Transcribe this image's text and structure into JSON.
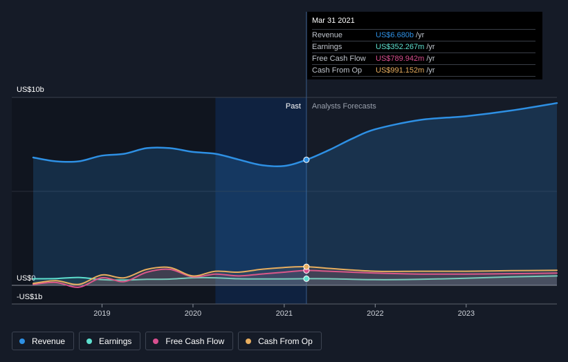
{
  "chart_data": {
    "type": "line",
    "x_axis": {
      "ticks": [
        "2019",
        "2020",
        "2021",
        "2022",
        "2023"
      ],
      "range": [
        "2018-03-31",
        "2023-12-31"
      ]
    },
    "y_axis": {
      "label_top": "US$10b",
      "label_zero": "US$0",
      "label_bottom": "-US$1b",
      "range": [
        -1,
        10
      ]
    },
    "zones": {
      "past_label": "Past",
      "forecast_label": "Analysts Forecasts",
      "divider_date": "2021-03-31"
    },
    "series": [
      {
        "name": "Revenue",
        "color": "#2e90e4",
        "points": [
          [
            "2018-03-31",
            6.8
          ],
          [
            "2018-06-30",
            6.6
          ],
          [
            "2018-09-30",
            6.6
          ],
          [
            "2018-12-31",
            6.9
          ],
          [
            "2019-03-31",
            7.0
          ],
          [
            "2019-06-30",
            7.3
          ],
          [
            "2019-09-30",
            7.3
          ],
          [
            "2019-12-31",
            7.1
          ],
          [
            "2020-03-31",
            7.0
          ],
          [
            "2020-06-30",
            6.7
          ],
          [
            "2020-09-30",
            6.4
          ],
          [
            "2020-12-31",
            6.35
          ],
          [
            "2021-03-31",
            6.68
          ],
          [
            "2021-06-30",
            7.2
          ],
          [
            "2021-09-30",
            7.8
          ],
          [
            "2021-12-31",
            8.3
          ],
          [
            "2022-06-30",
            8.8
          ],
          [
            "2022-12-31",
            9.0
          ],
          [
            "2023-06-30",
            9.3
          ],
          [
            "2023-12-31",
            9.7
          ]
        ]
      },
      {
        "name": "Earnings",
        "color": "#5ee0cf",
        "points": [
          [
            "2018-03-31",
            0.35
          ],
          [
            "2018-06-30",
            0.36
          ],
          [
            "2018-09-30",
            0.42
          ],
          [
            "2018-12-31",
            0.3
          ],
          [
            "2019-03-31",
            0.28
          ],
          [
            "2019-06-30",
            0.32
          ],
          [
            "2019-09-30",
            0.33
          ],
          [
            "2019-12-31",
            0.4
          ],
          [
            "2020-03-31",
            0.4
          ],
          [
            "2020-06-30",
            0.35
          ],
          [
            "2020-09-30",
            0.34
          ],
          [
            "2020-12-31",
            0.34
          ],
          [
            "2021-03-31",
            0.352
          ],
          [
            "2021-06-30",
            0.35
          ],
          [
            "2021-12-31",
            0.3
          ],
          [
            "2022-06-30",
            0.32
          ],
          [
            "2022-12-31",
            0.38
          ],
          [
            "2023-06-30",
            0.45
          ],
          [
            "2023-12-31",
            0.5
          ]
        ]
      },
      {
        "name": "Free Cash Flow",
        "color": "#d94f8f",
        "points": [
          [
            "2018-03-31",
            0.05
          ],
          [
            "2018-06-30",
            0.15
          ],
          [
            "2018-09-30",
            -0.1
          ],
          [
            "2018-12-31",
            0.4
          ],
          [
            "2019-03-31",
            0.2
          ],
          [
            "2019-06-30",
            0.7
          ],
          [
            "2019-09-30",
            0.85
          ],
          [
            "2019-12-31",
            0.45
          ],
          [
            "2020-03-31",
            0.6
          ],
          [
            "2020-06-30",
            0.5
          ],
          [
            "2020-09-30",
            0.6
          ],
          [
            "2020-12-31",
            0.7
          ],
          [
            "2021-03-31",
            0.79
          ],
          [
            "2021-06-30",
            0.75
          ],
          [
            "2021-12-31",
            0.65
          ],
          [
            "2022-06-30",
            0.6
          ],
          [
            "2022-12-31",
            0.6
          ],
          [
            "2023-06-30",
            0.62
          ],
          [
            "2023-12-31",
            0.65
          ]
        ]
      },
      {
        "name": "Cash From Op",
        "color": "#e8ae5f",
        "points": [
          [
            "2018-03-31",
            0.1
          ],
          [
            "2018-06-30",
            0.25
          ],
          [
            "2018-09-30",
            0.05
          ],
          [
            "2018-12-31",
            0.55
          ],
          [
            "2019-03-31",
            0.4
          ],
          [
            "2019-06-30",
            0.85
          ],
          [
            "2019-09-30",
            0.95
          ],
          [
            "2019-12-31",
            0.5
          ],
          [
            "2020-03-31",
            0.75
          ],
          [
            "2020-06-30",
            0.7
          ],
          [
            "2020-09-30",
            0.85
          ],
          [
            "2020-12-31",
            0.95
          ],
          [
            "2021-03-31",
            0.99
          ],
          [
            "2021-06-30",
            0.9
          ],
          [
            "2021-12-31",
            0.75
          ],
          [
            "2022-06-30",
            0.75
          ],
          [
            "2022-12-31",
            0.75
          ],
          [
            "2023-06-30",
            0.78
          ],
          [
            "2023-12-31",
            0.8
          ]
        ]
      }
    ],
    "grid": true,
    "legend_position": "bottom-left"
  },
  "tooltip": {
    "date": "Mar 31 2021",
    "rows": [
      {
        "label": "Revenue",
        "value": "US$6.680b",
        "unit": "/yr",
        "color": "#2e90e4"
      },
      {
        "label": "Earnings",
        "value": "US$352.267m",
        "unit": "/yr",
        "color": "#5ee0cf"
      },
      {
        "label": "Free Cash Flow",
        "value": "US$789.942m",
        "unit": "/yr",
        "color": "#d94f8f"
      },
      {
        "label": "Cash From Op",
        "value": "US$991.152m",
        "unit": "/yr",
        "color": "#e8ae5f"
      }
    ]
  },
  "legend": [
    {
      "label": "Revenue",
      "color": "#2e90e4"
    },
    {
      "label": "Earnings",
      "color": "#5ee0cf"
    },
    {
      "label": "Free Cash Flow",
      "color": "#d94f8f"
    },
    {
      "label": "Cash From Op",
      "color": "#e8ae5f"
    }
  ]
}
